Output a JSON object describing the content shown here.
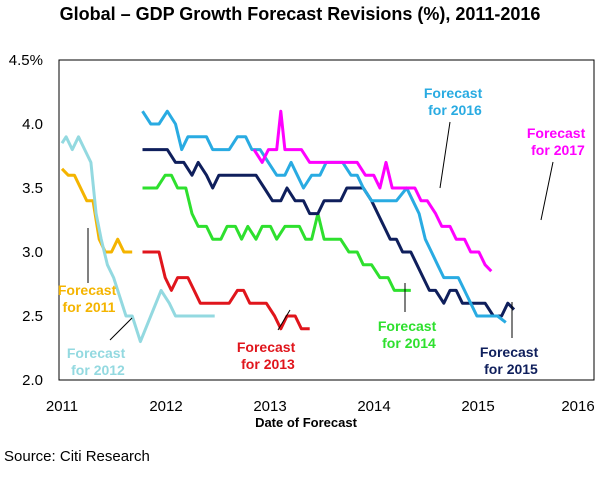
{
  "chart_data": {
    "type": "line",
    "title": "Global – GDP Growth Forecast Revisions (%), 2011-2016",
    "xlabel": "Date of Forecast",
    "ylabel": "",
    "source": "Source: Citi Research",
    "xlim": [
      2011.0,
      2016.1
    ],
    "ylim": [
      2.0,
      4.5
    ],
    "yticks": [
      "2.0",
      "2.5",
      "3.0",
      "3.5",
      "4.0",
      "4.5%"
    ],
    "xticks": [
      "2011",
      "2012",
      "2013",
      "2014",
      "2015",
      "2016"
    ],
    "grid": false,
    "series": [
      {
        "label": [
          "Forecast",
          "for 2011"
        ],
        "color": "#f4b400",
        "points": [
          [
            2011.0,
            3.65
          ],
          [
            2011.06,
            3.6
          ],
          [
            2011.12,
            3.6
          ],
          [
            2011.18,
            3.5
          ],
          [
            2011.24,
            3.4
          ],
          [
            2011.3,
            3.4
          ],
          [
            2011.36,
            3.1
          ],
          [
            2011.42,
            3.0
          ],
          [
            2011.48,
            3.0
          ],
          [
            2011.54,
            3.1
          ],
          [
            2011.6,
            3.0
          ],
          [
            2011.68,
            3.0
          ]
        ]
      },
      {
        "label": [
          "Forecast",
          "for 2012"
        ],
        "color": "#93d9e0",
        "points": [
          [
            2011.0,
            3.85
          ],
          [
            2011.04,
            3.9
          ],
          [
            2011.1,
            3.8
          ],
          [
            2011.16,
            3.9
          ],
          [
            2011.22,
            3.8
          ],
          [
            2011.28,
            3.7
          ],
          [
            2011.33,
            3.3
          ],
          [
            2011.38,
            3.1
          ],
          [
            2011.44,
            2.9
          ],
          [
            2011.5,
            2.8
          ],
          [
            2011.56,
            2.65
          ],
          [
            2011.62,
            2.5
          ],
          [
            2011.68,
            2.5
          ],
          [
            2011.76,
            2.3
          ],
          [
            2011.96,
            2.7
          ],
          [
            2012.04,
            2.6
          ],
          [
            2012.1,
            2.5
          ],
          [
            2012.2,
            2.5
          ],
          [
            2012.48,
            2.5
          ]
        ]
      },
      {
        "label": [
          "Forecast",
          "for 2013"
        ],
        "color": "#e0151c",
        "points": [
          [
            2011.78,
            3.0
          ],
          [
            2011.94,
            3.0
          ],
          [
            2012.0,
            2.8
          ],
          [
            2012.06,
            2.7
          ],
          [
            2012.12,
            2.8
          ],
          [
            2012.22,
            2.8
          ],
          [
            2012.28,
            2.7
          ],
          [
            2012.34,
            2.6
          ],
          [
            2012.5,
            2.6
          ],
          [
            2012.62,
            2.6
          ],
          [
            2012.7,
            2.7
          ],
          [
            2012.76,
            2.7
          ],
          [
            2012.82,
            2.6
          ],
          [
            2012.98,
            2.6
          ],
          [
            2013.06,
            2.5
          ],
          [
            2013.12,
            2.4
          ],
          [
            2013.18,
            2.5
          ],
          [
            2013.26,
            2.5
          ],
          [
            2013.32,
            2.4
          ],
          [
            2013.4,
            2.4
          ]
        ]
      },
      {
        "label": [
          "Forecast",
          "for 2014"
        ],
        "color": "#2ee02e",
        "points": [
          [
            2011.78,
            3.5
          ],
          [
            2011.92,
            3.5
          ],
          [
            2012.0,
            3.6
          ],
          [
            2012.06,
            3.6
          ],
          [
            2012.12,
            3.5
          ],
          [
            2012.2,
            3.5
          ],
          [
            2012.26,
            3.3
          ],
          [
            2012.32,
            3.2
          ],
          [
            2012.4,
            3.2
          ],
          [
            2012.46,
            3.1
          ],
          [
            2012.54,
            3.1
          ],
          [
            2012.6,
            3.2
          ],
          [
            2012.68,
            3.2
          ],
          [
            2012.74,
            3.1
          ],
          [
            2012.8,
            3.2
          ],
          [
            2012.88,
            3.1
          ],
          [
            2012.94,
            3.2
          ],
          [
            2013.02,
            3.2
          ],
          [
            2013.08,
            3.1
          ],
          [
            2013.16,
            3.2
          ],
          [
            2013.3,
            3.2
          ],
          [
            2013.36,
            3.1
          ],
          [
            2013.42,
            3.1
          ],
          [
            2013.48,
            3.3
          ],
          [
            2013.54,
            3.1
          ],
          [
            2013.7,
            3.1
          ],
          [
            2013.78,
            3.0
          ],
          [
            2013.86,
            3.0
          ],
          [
            2013.92,
            2.9
          ],
          [
            2014.0,
            2.9
          ],
          [
            2014.08,
            2.8
          ],
          [
            2014.16,
            2.8
          ],
          [
            2014.22,
            2.7
          ],
          [
            2014.38,
            2.7
          ]
        ]
      },
      {
        "label": [
          "Forecast",
          "for 2015"
        ],
        "color": "#0f1f5c",
        "points": [
          [
            2011.78,
            3.8
          ],
          [
            2012.02,
            3.8
          ],
          [
            2012.1,
            3.7
          ],
          [
            2012.18,
            3.7
          ],
          [
            2012.26,
            3.6
          ],
          [
            2012.32,
            3.7
          ],
          [
            2012.4,
            3.6
          ],
          [
            2012.46,
            3.5
          ],
          [
            2012.52,
            3.6
          ],
          [
            2012.8,
            3.6
          ],
          [
            2012.88,
            3.6
          ],
          [
            2012.96,
            3.5
          ],
          [
            2013.04,
            3.4
          ],
          [
            2013.12,
            3.4
          ],
          [
            2013.18,
            3.5
          ],
          [
            2013.26,
            3.4
          ],
          [
            2013.34,
            3.4
          ],
          [
            2013.4,
            3.3
          ],
          [
            2013.48,
            3.3
          ],
          [
            2013.54,
            3.4
          ],
          [
            2013.62,
            3.4
          ],
          [
            2013.7,
            3.4
          ],
          [
            2013.76,
            3.5
          ],
          [
            2013.92,
            3.5
          ],
          [
            2014.0,
            3.4
          ],
          [
            2014.06,
            3.3
          ],
          [
            2014.12,
            3.2
          ],
          [
            2014.18,
            3.1
          ],
          [
            2014.24,
            3.1
          ],
          [
            2014.3,
            3.0
          ],
          [
            2014.38,
            3.0
          ],
          [
            2014.44,
            2.9
          ],
          [
            2014.5,
            2.8
          ],
          [
            2014.56,
            2.7
          ],
          [
            2014.62,
            2.7
          ],
          [
            2014.7,
            2.6
          ],
          [
            2014.76,
            2.7
          ],
          [
            2014.82,
            2.7
          ],
          [
            2014.88,
            2.6
          ],
          [
            2015.1,
            2.6
          ],
          [
            2015.18,
            2.5
          ],
          [
            2015.26,
            2.5
          ],
          [
            2015.32,
            2.6
          ],
          [
            2015.38,
            2.55
          ]
        ]
      },
      {
        "label": [
          "Forecast",
          "for 2016"
        ],
        "color": "#29abe2",
        "points": [
          [
            2011.78,
            4.1
          ],
          [
            2011.86,
            4.0
          ],
          [
            2011.94,
            4.0
          ],
          [
            2012.02,
            4.1
          ],
          [
            2012.1,
            4.0
          ],
          [
            2012.16,
            3.8
          ],
          [
            2012.22,
            3.9
          ],
          [
            2012.4,
            3.9
          ],
          [
            2012.46,
            3.8
          ],
          [
            2012.52,
            3.8
          ],
          [
            2012.62,
            3.8
          ],
          [
            2012.7,
            3.9
          ],
          [
            2012.78,
            3.9
          ],
          [
            2012.84,
            3.8
          ],
          [
            2012.92,
            3.8
          ],
          [
            2013.0,
            3.7
          ],
          [
            2013.08,
            3.6
          ],
          [
            2013.16,
            3.6
          ],
          [
            2013.22,
            3.7
          ],
          [
            2013.28,
            3.6
          ],
          [
            2013.34,
            3.5
          ],
          [
            2013.42,
            3.6
          ],
          [
            2013.5,
            3.6
          ],
          [
            2013.56,
            3.7
          ],
          [
            2013.72,
            3.7
          ],
          [
            2013.8,
            3.6
          ],
          [
            2013.86,
            3.6
          ],
          [
            2013.92,
            3.5
          ],
          [
            2014.0,
            3.4
          ],
          [
            2014.2,
            3.4
          ],
          [
            2014.24,
            3.4
          ],
          [
            2014.34,
            3.5
          ],
          [
            2014.4,
            3.4
          ],
          [
            2014.46,
            3.3
          ],
          [
            2014.52,
            3.1
          ],
          [
            2014.58,
            3.0
          ],
          [
            2014.64,
            2.9
          ],
          [
            2014.7,
            2.8
          ],
          [
            2014.84,
            2.8
          ],
          [
            2014.9,
            2.7
          ],
          [
            2014.96,
            2.6
          ],
          [
            2015.02,
            2.5
          ],
          [
            2015.14,
            2.5
          ],
          [
            2015.22,
            2.5
          ],
          [
            2015.3,
            2.45
          ]
        ]
      },
      {
        "label": [
          "Forecast",
          "for 2017"
        ],
        "color": "#ff00ff",
        "points": [
          [
            2012.86,
            3.8
          ],
          [
            2012.94,
            3.7
          ],
          [
            2013.0,
            3.8
          ],
          [
            2013.08,
            3.8
          ],
          [
            2013.12,
            4.1
          ],
          [
            2013.16,
            3.8
          ],
          [
            2013.24,
            3.8
          ],
          [
            2013.32,
            3.8
          ],
          [
            2013.4,
            3.7
          ],
          [
            2013.48,
            3.7
          ],
          [
            2013.56,
            3.7
          ],
          [
            2013.62,
            3.7
          ],
          [
            2013.7,
            3.7
          ],
          [
            2013.8,
            3.7
          ],
          [
            2013.86,
            3.7
          ],
          [
            2013.94,
            3.6
          ],
          [
            2014.02,
            3.6
          ],
          [
            2014.08,
            3.5
          ],
          [
            2014.14,
            3.7
          ],
          [
            2014.2,
            3.5
          ],
          [
            2014.34,
            3.5
          ],
          [
            2014.42,
            3.5
          ],
          [
            2014.48,
            3.4
          ],
          [
            2014.54,
            3.4
          ],
          [
            2014.62,
            3.3
          ],
          [
            2014.68,
            3.2
          ],
          [
            2014.76,
            3.2
          ],
          [
            2014.82,
            3.1
          ],
          [
            2014.9,
            3.1
          ],
          [
            2014.96,
            3.0
          ],
          [
            2015.04,
            3.0
          ],
          [
            2015.1,
            2.9
          ],
          [
            2015.16,
            2.85
          ]
        ]
      }
    ]
  }
}
